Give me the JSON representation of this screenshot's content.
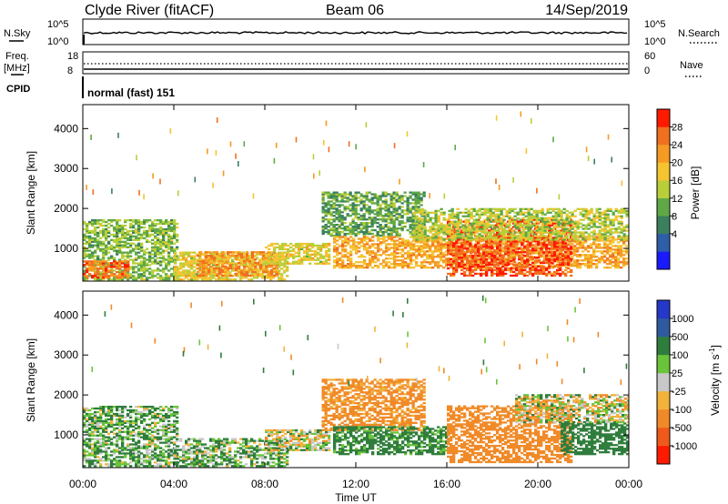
{
  "header": {
    "station": "Clyde River (fitACF)",
    "beam": "Beam 06",
    "date": "14/Sep/2019"
  },
  "panels": {
    "nsky_label": "N.Sky",
    "nsearch_label": "N.Search",
    "nsky_ticks": [
      "10^5",
      "10^0"
    ],
    "nsearch_ticks": [
      "10^5",
      "10^0"
    ],
    "freq_label_1": "Freq.",
    "freq_label_2": "[MHz]",
    "freq_ticks": [
      "18",
      "8"
    ],
    "nave_label": "Nave",
    "nave_ticks": [
      "60",
      "0"
    ],
    "cpid_label": "CPID",
    "cpid_value": "normal (fast) 151"
  },
  "colors": {
    "power": [
      "#1a1aff",
      "#2e5ea8",
      "#3b7f5e",
      "#5fa845",
      "#b9cf3a",
      "#f5c431",
      "#f59a22",
      "#f07020",
      "#ff1a00"
    ],
    "velocity": [
      "#ff1a00",
      "#ef5a1a",
      "#f08a28",
      "#f2b23c",
      "#c8c8c8",
      "#c8c8c8",
      "#69c43a",
      "#2f7d3c",
      "#2f5aa0",
      "#2638c8"
    ]
  },
  "chart_data": [
    {
      "type": "heatmap",
      "name": "power",
      "ylabel": "Slant Range [km]",
      "yticks": [
        "4000",
        "3000",
        "2000",
        "1000"
      ],
      "ylim": [
        180,
        4600
      ],
      "colorbar_label": "Power [dB]",
      "colorbar_ticks": [
        "28",
        "24",
        "20",
        "16",
        "12",
        "8",
        "4"
      ],
      "colorbar_range": [
        0,
        32
      ],
      "xlim": [
        0,
        24
      ],
      "echo_regions": [
        {
          "t": [
            0.0,
            4.2
          ],
          "range": [
            200,
            1700
          ],
          "power": 14
        },
        {
          "t": [
            0.0,
            2.0
          ],
          "range": [
            250,
            700
          ],
          "power": 26
        },
        {
          "t": [
            4.0,
            9.0
          ],
          "range": [
            200,
            900
          ],
          "power": 18
        },
        {
          "t": [
            5.0,
            8.5
          ],
          "range": [
            300,
            900
          ],
          "power": 24
        },
        {
          "t": [
            8.0,
            10.8
          ],
          "range": [
            600,
            1100
          ],
          "power": 18
        },
        {
          "t": [
            10.5,
            15.0
          ],
          "range": [
            1300,
            2400
          ],
          "power": 12
        },
        {
          "t": [
            11.0,
            24.0
          ],
          "range": [
            500,
            1300
          ],
          "power": 22
        },
        {
          "t": [
            16.0,
            21.5
          ],
          "range": [
            300,
            1700
          ],
          "power": 28
        },
        {
          "t": [
            14.5,
            24.0
          ],
          "range": [
            1200,
            2000
          ],
          "power": 16
        }
      ]
    },
    {
      "type": "heatmap",
      "name": "velocity",
      "ylabel": "Slant Range [km]",
      "yticks": [
        "4000",
        "3000",
        "2000",
        "1000"
      ],
      "ylim": [
        180,
        4600
      ],
      "colorbar_label": "Velocity [m s^-1]",
      "colorbar_ticks": [
        "1000",
        "500",
        "100",
        "25",
        "-25",
        "-100",
        "-500",
        "-1000"
      ],
      "xlim": [
        0,
        24
      ],
      "echo_regions": [
        {
          "t": [
            0.0,
            4.2
          ],
          "range": [
            200,
            1700
          ],
          "velocity": 100
        },
        {
          "t": [
            4.0,
            9.0
          ],
          "range": [
            200,
            900
          ],
          "velocity": 100
        },
        {
          "t": [
            8.0,
            10.8
          ],
          "range": [
            600,
            1100
          ],
          "velocity": 0
        },
        {
          "t": [
            10.5,
            15.0
          ],
          "range": [
            1100,
            2400
          ],
          "velocity": -200
        },
        {
          "t": [
            11.0,
            16.0
          ],
          "range": [
            500,
            1200
          ],
          "velocity": 200
        },
        {
          "t": [
            16.0,
            21.5
          ],
          "range": [
            300,
            1700
          ],
          "velocity": -300
        },
        {
          "t": [
            21.0,
            24.0
          ],
          "range": [
            500,
            1300
          ],
          "velocity": 300
        },
        {
          "t": [
            19.0,
            24.0
          ],
          "range": [
            1300,
            2000
          ],
          "velocity": 0
        }
      ]
    }
  ],
  "xaxis": {
    "ticks": [
      "00:00",
      "04:00",
      "08:00",
      "12:00",
      "16:00",
      "20:00",
      "00:00"
    ],
    "label": "Time UT"
  }
}
